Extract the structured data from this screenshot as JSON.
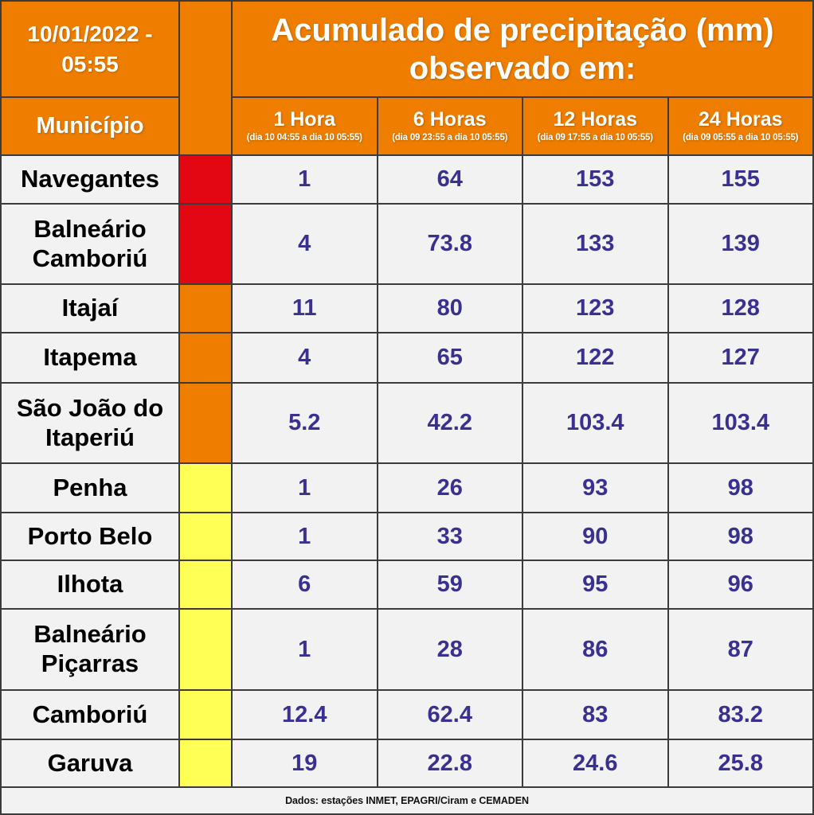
{
  "header": {
    "datetime": "10/01/2022 - 05:55",
    "municipality_label": "Município"
  },
  "chart_data": {
    "type": "table",
    "title": "Acumulado de precipitação (mm) observado em:",
    "unit": "mm",
    "columns": [
      {
        "label": "1 Hora",
        "period": "(dia 10 04:55 a dia 10 05:55)"
      },
      {
        "label": "6 Horas",
        "period": "(dia 09 23:55 a dia 10 05:55)"
      },
      {
        "label": "12 Horas",
        "period": "(dia 09 17:55 a dia 10 05:55)"
      },
      {
        "label": "24 Horas",
        "period": "(dia 09 05:55 a dia 10 05:55)"
      }
    ],
    "rows": [
      {
        "name": "Navegantes",
        "alert_level": "red",
        "values": [
          "1",
          "64",
          "153",
          "155"
        ]
      },
      {
        "name": "Balneário Camboriú",
        "alert_level": "red",
        "values": [
          "4",
          "73.8",
          "133",
          "139"
        ]
      },
      {
        "name": "Itajaí",
        "alert_level": "orange",
        "values": [
          "11",
          "80",
          "123",
          "128"
        ]
      },
      {
        "name": "Itapema",
        "alert_level": "orange",
        "values": [
          "4",
          "65",
          "122",
          "127"
        ]
      },
      {
        "name": "São João do Itaperiú",
        "alert_level": "orange",
        "values": [
          "5.2",
          "42.2",
          "103.4",
          "103.4"
        ]
      },
      {
        "name": "Penha",
        "alert_level": "yellow",
        "values": [
          "1",
          "26",
          "93",
          "98"
        ]
      },
      {
        "name": "Porto Belo",
        "alert_level": "yellow",
        "values": [
          "1",
          "33",
          "90",
          "98"
        ]
      },
      {
        "name": "Ilhota",
        "alert_level": "yellow",
        "values": [
          "6",
          "59",
          "95",
          "96"
        ]
      },
      {
        "name": "Balneário Piçarras",
        "alert_level": "yellow",
        "values": [
          "1",
          "28",
          "86",
          "87"
        ]
      },
      {
        "name": "Camboriú",
        "alert_level": "yellow",
        "values": [
          "12.4",
          "62.4",
          "83",
          "83.2"
        ]
      },
      {
        "name": "Garuva",
        "alert_level": "yellow",
        "values": [
          "19",
          "22.8",
          "24.6",
          "25.8"
        ]
      }
    ]
  },
  "colors": {
    "red": "#e30613",
    "orange": "#ee7d00",
    "yellow": "#ffff55",
    "header_bg": "#ee7d00",
    "value_text": "#3a3092",
    "cell_bg": "#f2f2f2",
    "grid_line": "#3b3b3b"
  },
  "footer": {
    "source": "Dados: estações INMET, EPAGRI/Ciram e CEMADEN"
  }
}
